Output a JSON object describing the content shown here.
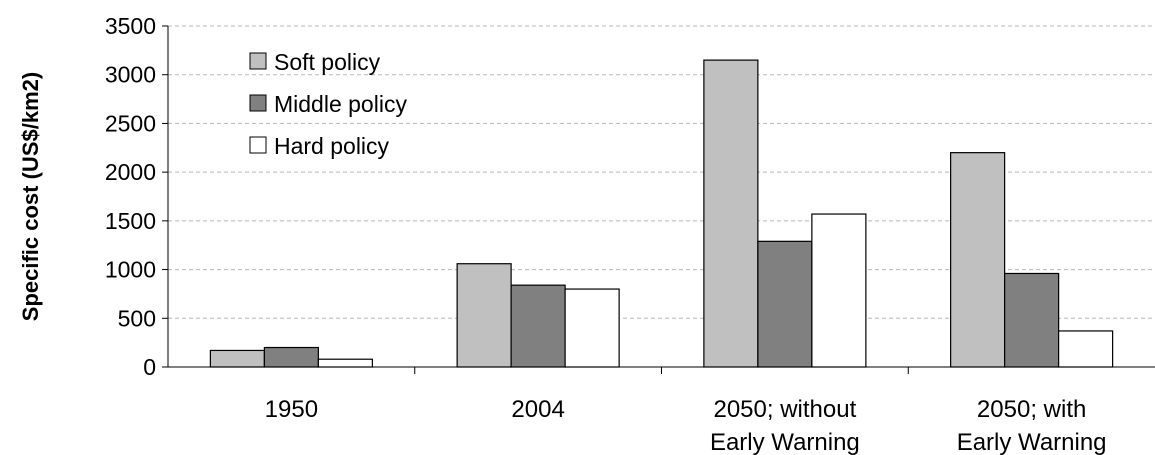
{
  "chart_data": {
    "type": "bar",
    "title": "",
    "xlabel": "",
    "ylabel": "Specific cost (US$/km2)",
    "ylim": [
      0,
      3500
    ],
    "yticks": [
      0,
      500,
      1000,
      1500,
      2000,
      2500,
      3000,
      3500
    ],
    "grid": true,
    "legend_position": "top-left",
    "categories": [
      [
        "1950"
      ],
      [
        "2004"
      ],
      [
        "2050; without",
        "Early Warning"
      ],
      [
        "2050; with",
        "Early Warning"
      ]
    ],
    "series": [
      {
        "name": "Soft policy",
        "color": "#c0c0c0",
        "values": [
          170,
          1060,
          3150,
          2200
        ]
      },
      {
        "name": "Middle policy",
        "color": "#808080",
        "values": [
          200,
          840,
          1290,
          960
        ]
      },
      {
        "name": "Hard policy",
        "color": "#ffffff",
        "values": [
          80,
          800,
          1570,
          370
        ]
      }
    ]
  }
}
